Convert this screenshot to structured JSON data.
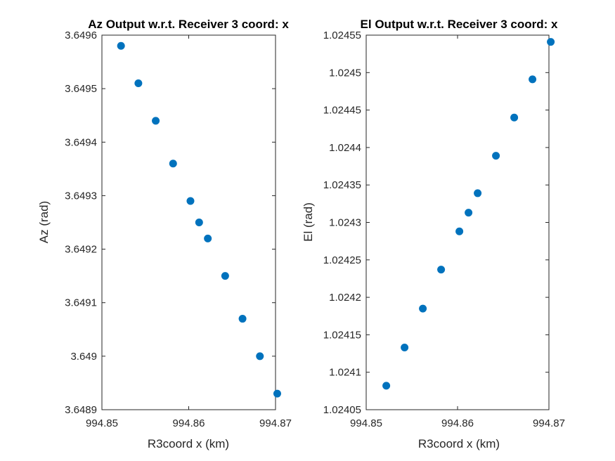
{
  "colors": {
    "marker": "#0072BD",
    "axis": "#262626",
    "background": "#ffffff"
  },
  "chart_data": [
    {
      "type": "scatter",
      "title": "Az Output w.r.t. Receiver 3 coord: x",
      "xlabel": "R3coord x (km)",
      "ylabel": "Az (rad)",
      "xlim": [
        994.85,
        994.87
      ],
      "ylim": [
        3.6489,
        3.6496
      ],
      "xticks": [
        994.85,
        994.86,
        994.87
      ],
      "xtick_labels": [
        "994.85",
        "994.86",
        "994.87"
      ],
      "yticks": [
        3.6489,
        3.649,
        3.6491,
        3.6492,
        3.6493,
        3.6494,
        3.6495,
        3.6496
      ],
      "ytick_labels": [
        "3.6489",
        "3.649",
        "3.6491",
        "3.6492",
        "3.6493",
        "3.6494",
        "3.6495",
        "3.6496"
      ],
      "grid": false,
      "legend": "none",
      "x": [
        994.8522,
        994.8542,
        994.8562,
        994.8582,
        994.8602,
        994.8612,
        994.8622,
        994.8642,
        994.8662,
        994.8682,
        994.8702
      ],
      "y": [
        3.64958,
        3.64951,
        3.64944,
        3.64936,
        3.64929,
        3.64925,
        3.64922,
        3.64915,
        3.64907,
        3.649,
        3.64893
      ]
    },
    {
      "type": "scatter",
      "title": "El Output w.r.t. Receiver 3 coord: x",
      "xlabel": "R3coord x (km)",
      "ylabel": "El (rad)",
      "xlim": [
        994.85,
        994.87
      ],
      "ylim": [
        1.02405,
        1.02455
      ],
      "xticks": [
        994.85,
        994.86,
        994.87
      ],
      "xtick_labels": [
        "994.85",
        "994.86",
        "994.87"
      ],
      "yticks": [
        1.02405,
        1.0241,
        1.02415,
        1.0242,
        1.02425,
        1.0243,
        1.02435,
        1.0244,
        1.02445,
        1.0245,
        1.02455
      ],
      "ytick_labels": [
        "1.02405",
        "1.0241",
        "1.02415",
        "1.0242",
        "1.02425",
        "1.0243",
        "1.02435",
        "1.0244",
        "1.02445",
        "1.0245",
        "1.02455"
      ],
      "grid": false,
      "legend": "none",
      "x": [
        994.8522,
        994.8542,
        994.8562,
        994.8582,
        994.8602,
        994.8612,
        994.8622,
        994.8642,
        994.8662,
        994.8682,
        994.8702
      ],
      "y": [
        1.024082,
        1.024133,
        1.024185,
        1.024237,
        1.024288,
        1.024313,
        1.024339,
        1.024389,
        1.02444,
        1.024491,
        1.024541
      ]
    }
  ]
}
